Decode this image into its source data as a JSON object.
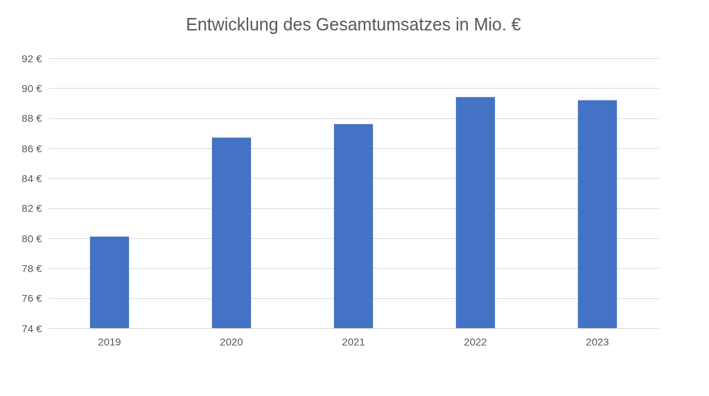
{
  "chart_data": {
    "type": "bar",
    "title": "Entwicklung des Gesamtumsatzes in Mio. €",
    "categories": [
      "2019",
      "2020",
      "2021",
      "2022",
      "2023"
    ],
    "values": [
      80.1,
      86.7,
      87.6,
      89.4,
      89.2
    ],
    "color": "#4472c4",
    "ylim": [
      74,
      92
    ],
    "yticks": [
      {
        "value": 74,
        "label": "74 €"
      },
      {
        "value": 76,
        "label": "76 €"
      },
      {
        "value": 78,
        "label": "78 €"
      },
      {
        "value": 80,
        "label": "80 €"
      },
      {
        "value": 82,
        "label": "82 €"
      },
      {
        "value": 84,
        "label": "84 €"
      },
      {
        "value": 86,
        "label": "86 €"
      },
      {
        "value": 88,
        "label": "88 €"
      },
      {
        "value": 90,
        "label": "90 €"
      },
      {
        "value": 92,
        "label": "92 €"
      }
    ],
    "grid": "y"
  }
}
